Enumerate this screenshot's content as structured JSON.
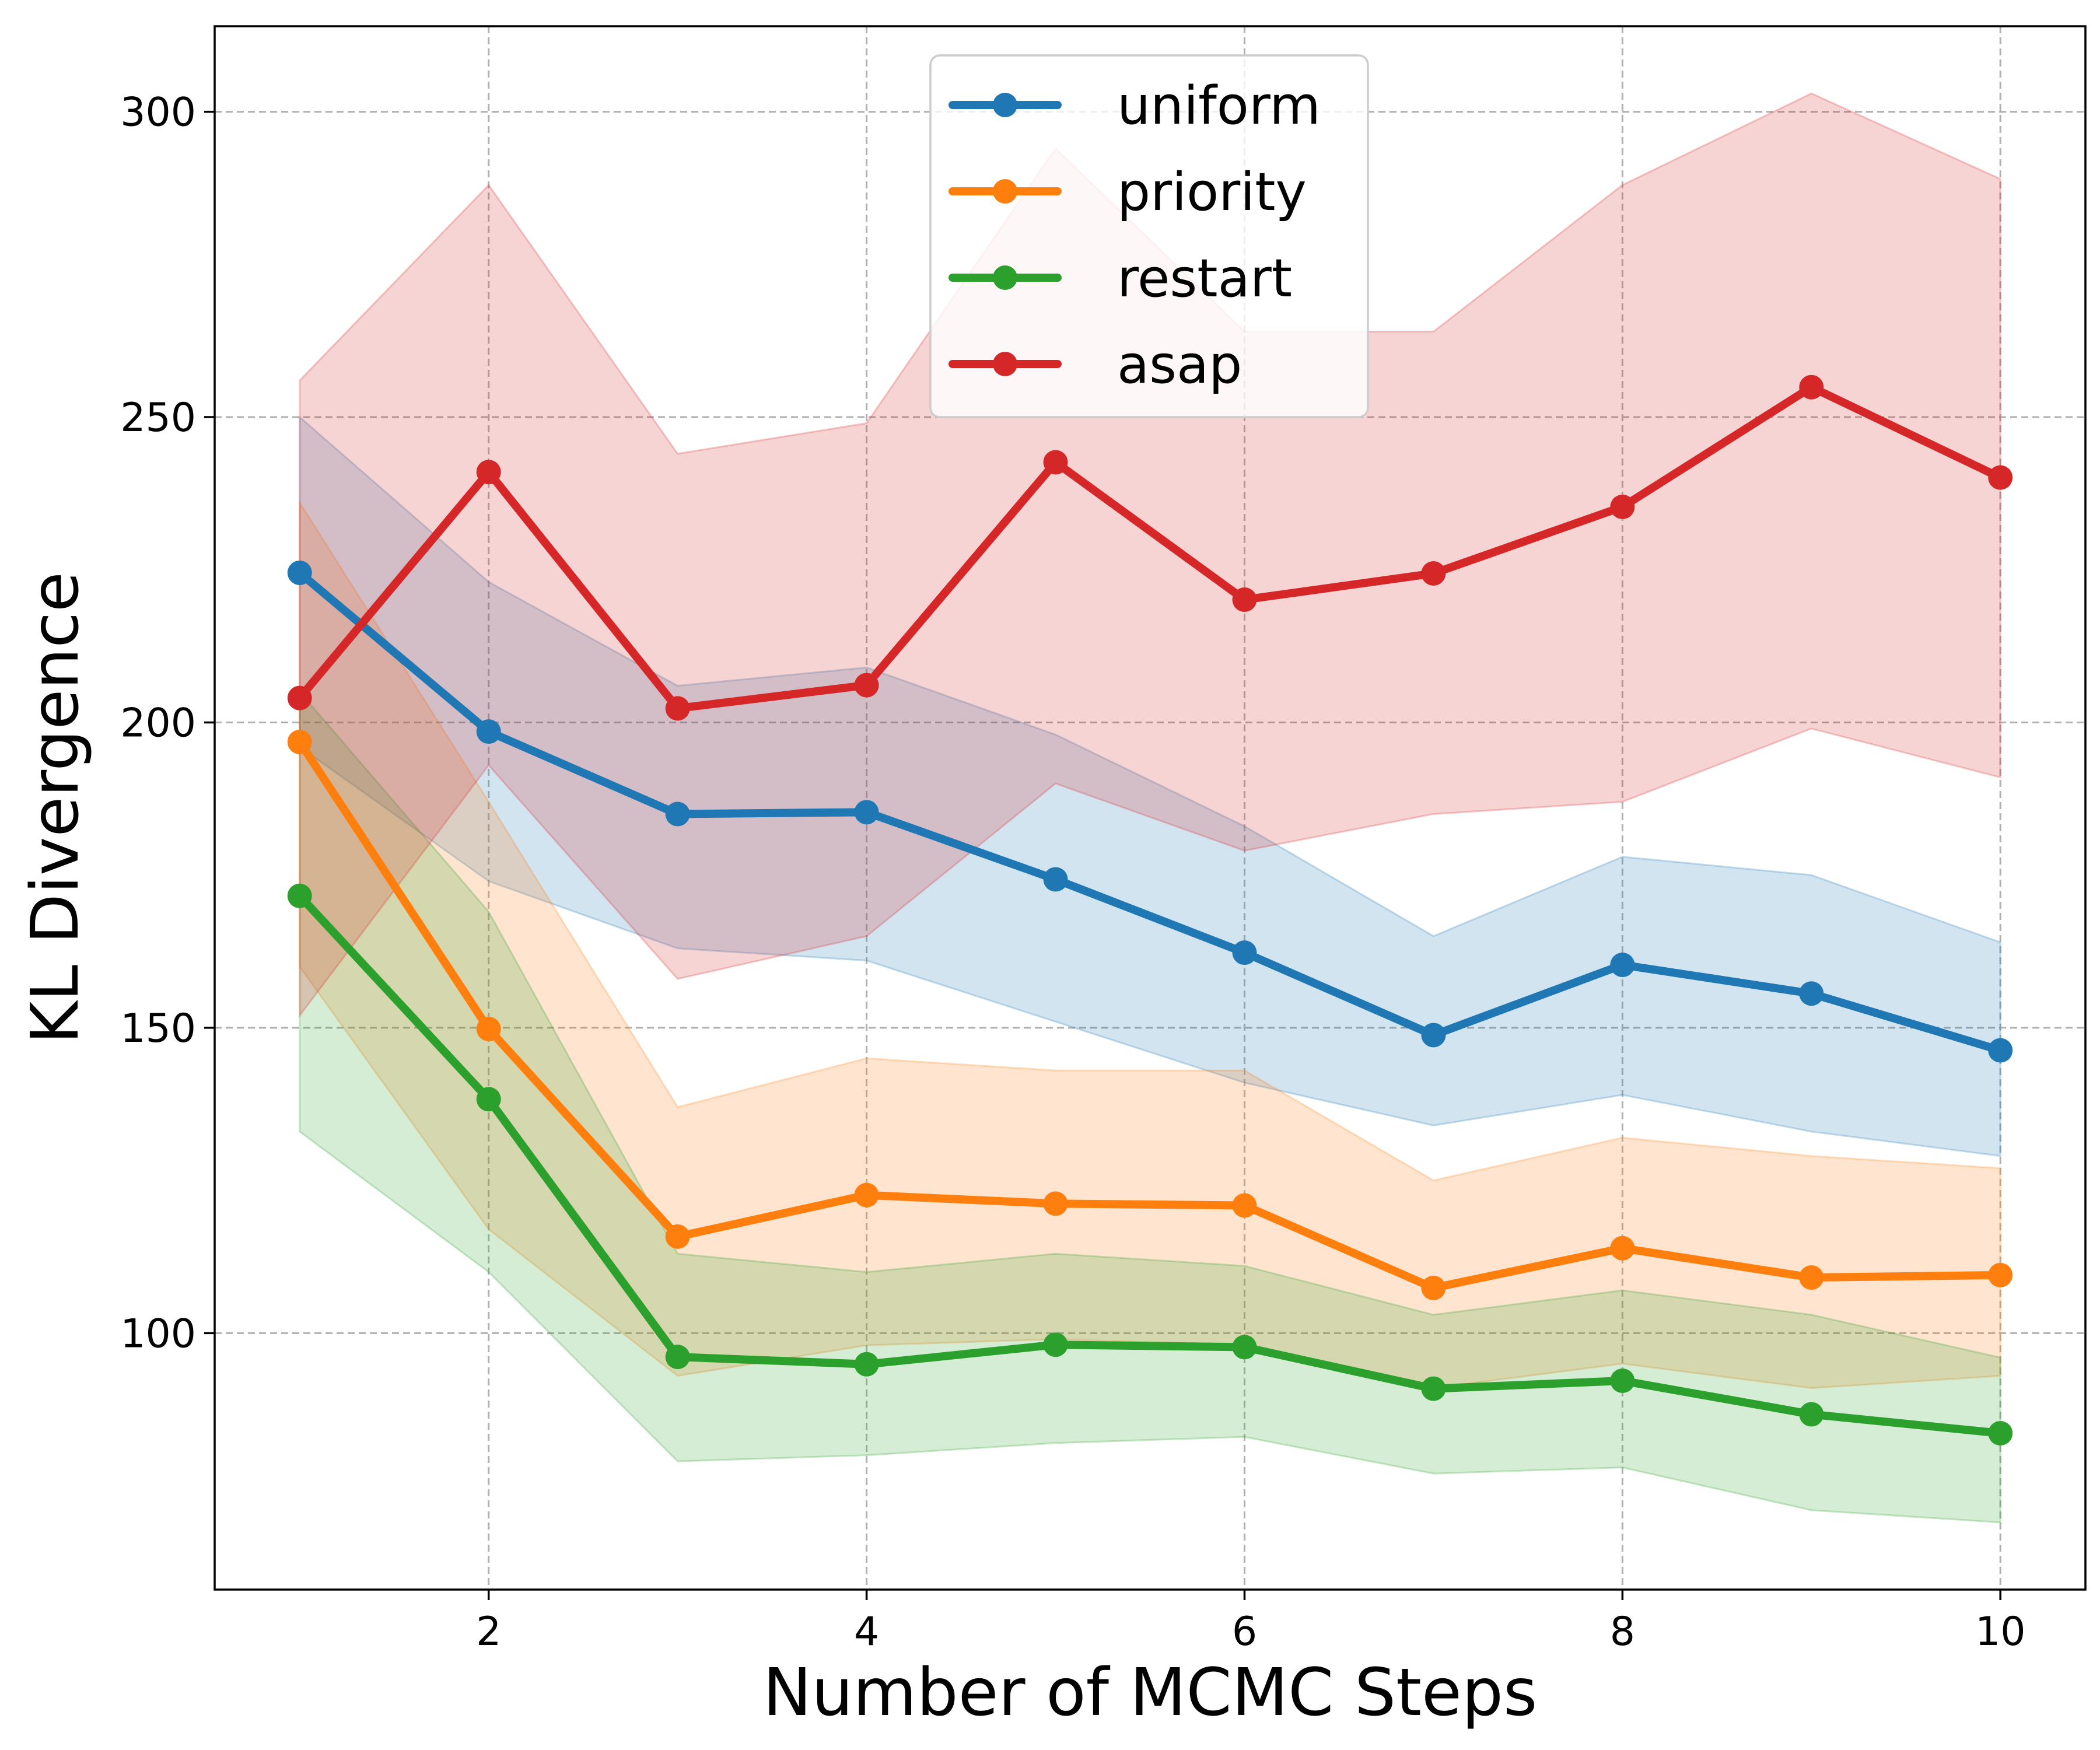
{
  "chart_data": {
    "type": "line",
    "title": "",
    "xlabel": "Number of MCMC Steps",
    "ylabel": "KL Divergence",
    "xlim": [
      0.55,
      10.45
    ],
    "ylim": [
      58,
      314
    ],
    "xticks": [
      2,
      4,
      6,
      8,
      10
    ],
    "yticks": [
      100,
      150,
      200,
      250,
      300
    ],
    "grid": true,
    "legend_position": "top-center",
    "x": [
      1,
      2,
      3,
      4,
      5,
      6,
      7,
      8,
      9,
      10
    ],
    "series": [
      {
        "name": "uniform",
        "color": "#1f77b4",
        "values": [
          224.5,
          198.5,
          185,
          185.3,
          174.3,
          162.3,
          148.8,
          160.3,
          155.6,
          146.3
        ],
        "lower": [
          196,
          174,
          163,
          161,
          151,
          141,
          134,
          139,
          133,
          129
        ],
        "upper": [
          250,
          223,
          206,
          209,
          198,
          183,
          165,
          178,
          175,
          164
        ]
      },
      {
        "name": "priority",
        "color": "#ff7f0e",
        "values": [
          196.8,
          149.8,
          115.8,
          122.6,
          121.2,
          120.9,
          107.4,
          113.9,
          109.1,
          109.5
        ],
        "lower": [
          160,
          117,
          93,
          98,
          99,
          98,
          91,
          95,
          91,
          93
        ],
        "upper": [
          236,
          187,
          137,
          145,
          143,
          143,
          125,
          132,
          129,
          127
        ]
      },
      {
        "name": "restart",
        "color": "#2ca02c",
        "values": [
          171.6,
          138.3,
          96.1,
          94.9,
          98.1,
          97.7,
          90.9,
          92.2,
          86.7,
          83.6
        ],
        "lower": [
          133,
          110,
          79,
          80,
          82,
          83,
          77,
          78,
          71,
          69
        ],
        "upper": [
          205,
          169,
          113,
          110,
          113,
          111,
          103,
          107,
          103,
          96
        ]
      },
      {
        "name": "asap",
        "color": "#d62728",
        "values": [
          204,
          241,
          202.3,
          206.1,
          242.6,
          220.1,
          224.4,
          235.3,
          254.9,
          240.1
        ],
        "lower": [
          152,
          193,
          158,
          165,
          190,
          179,
          185,
          187,
          199,
          191
        ],
        "upper": [
          256,
          288,
          244,
          249,
          294,
          264,
          264,
          288,
          303,
          289
        ]
      }
    ]
  }
}
